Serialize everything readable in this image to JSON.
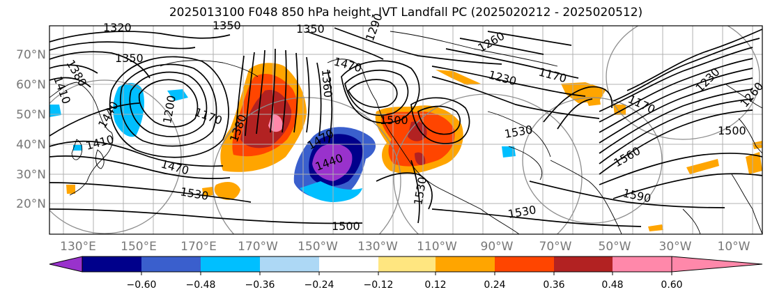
{
  "title": "2025013100 F048 850 hPa height, IVT Landfall PC (2025020212 - 2025020512)",
  "latitude_labels": [
    "70°N",
    "60°N",
    "50°N",
    "40°N",
    "30°N",
    "20°N"
  ],
  "longitude_labels": [
    "130°E",
    "150°E",
    "170°E",
    "170°W",
    "150°W",
    "130°W",
    "110°W",
    "90°W",
    "70°W",
    "50°W",
    "30°W",
    "10°W"
  ],
  "contour_labels": [
    "1320",
    "1350",
    "1350",
    "1380",
    "1410",
    "1350",
    "1170",
    "1200",
    "1410",
    "1440",
    "1470",
    "1530",
    "1470",
    "1380",
    "1360",
    "1470",
    "1290",
    "1260",
    "1230",
    "1170",
    "1440",
    "1500",
    "1530",
    "1530",
    "1560",
    "1590",
    "1500",
    "1530",
    "1170",
    "1230",
    "1260",
    "1500"
  ],
  "colorbar": {
    "tick_labels": [
      "−0.60",
      "−0.48",
      "−0.36",
      "−0.24",
      "−0.12",
      "0.12",
      "0.24",
      "0.36",
      "0.48",
      "0.60"
    ],
    "colors": [
      "#9932cc",
      "#00008b",
      "#3a5fcd",
      "#00bfff",
      "#add8f5",
      "#ffffff",
      "#ffe680",
      "#ffa500",
      "#ff4500",
      "#b22222",
      "#ff88aa"
    ]
  }
}
